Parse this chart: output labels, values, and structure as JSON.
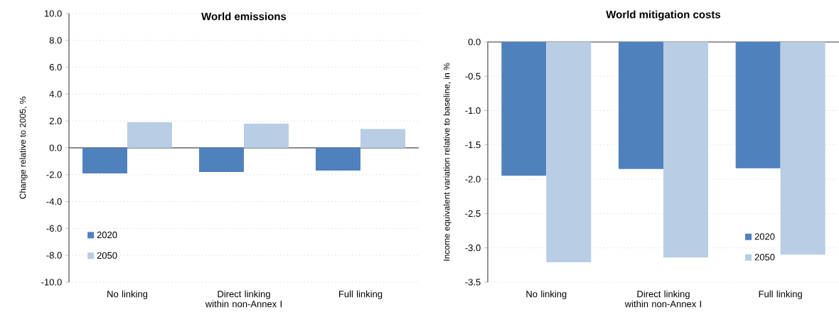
{
  "chart_data": [
    {
      "type": "bar",
      "title": "World emissions",
      "ylabel": "Change  relative to 2005, %",
      "categories": [
        "No linking",
        "Direct linking within non-Annex I",
        "Full linking"
      ],
      "series": [
        {
          "name": "2020",
          "color": "#4f81bd",
          "values": [
            -1.9,
            -1.8,
            -1.7
          ]
        },
        {
          "name": "2050",
          "color": "#b9cde5",
          "values": [
            1.9,
            1.8,
            1.4
          ]
        }
      ],
      "ylim": [
        -10,
        10
      ],
      "yticks": [
        {
          "value": -10,
          "label": "-10.0"
        },
        {
          "value": -8,
          "label": "-8.0"
        },
        {
          "value": -6,
          "label": "-6.0"
        },
        {
          "value": -4,
          "label": "-4.0"
        },
        {
          "value": -2,
          "label": "-2.0"
        },
        {
          "value": 0,
          "label": "0.0"
        },
        {
          "value": 2,
          "label": "2.0"
        },
        {
          "value": 4,
          "label": "4.0"
        },
        {
          "value": 6,
          "label": "6.0"
        },
        {
          "value": 8,
          "label": "8.0"
        },
        {
          "value": 10,
          "label": "10.0"
        }
      ],
      "grid": "y",
      "legend": "bottom left"
    },
    {
      "type": "bar",
      "title": "World mitigation costs",
      "ylabel": "Income equivalent variation relative to baseline, in  %",
      "categories": [
        "No linking",
        "Direct linking within non-Annex I",
        "Full linking"
      ],
      "series": [
        {
          "name": "2020",
          "color": "#4f81bd",
          "values": [
            -1.95,
            -1.85,
            -1.84
          ]
        },
        {
          "name": "2050",
          "color": "#b9cde5",
          "values": [
            -3.21,
            -3.14,
            -3.1
          ]
        }
      ],
      "ylim": [
        -3.5,
        0
      ],
      "yticks": [
        {
          "value": -3.5,
          "label": "-3.5"
        },
        {
          "value": -3,
          "label": "-3.0"
        },
        {
          "value": -2.5,
          "label": "-2.5"
        },
        {
          "value": -2,
          "label": "-2.0"
        },
        {
          "value": -1.5,
          "label": "-1.5"
        },
        {
          "value": -1,
          "label": "-1.0"
        },
        {
          "value": -0.5,
          "label": "-0.5"
        },
        {
          "value": 0,
          "label": "0.0"
        }
      ],
      "grid": "y",
      "legend": "bottom right"
    }
  ]
}
